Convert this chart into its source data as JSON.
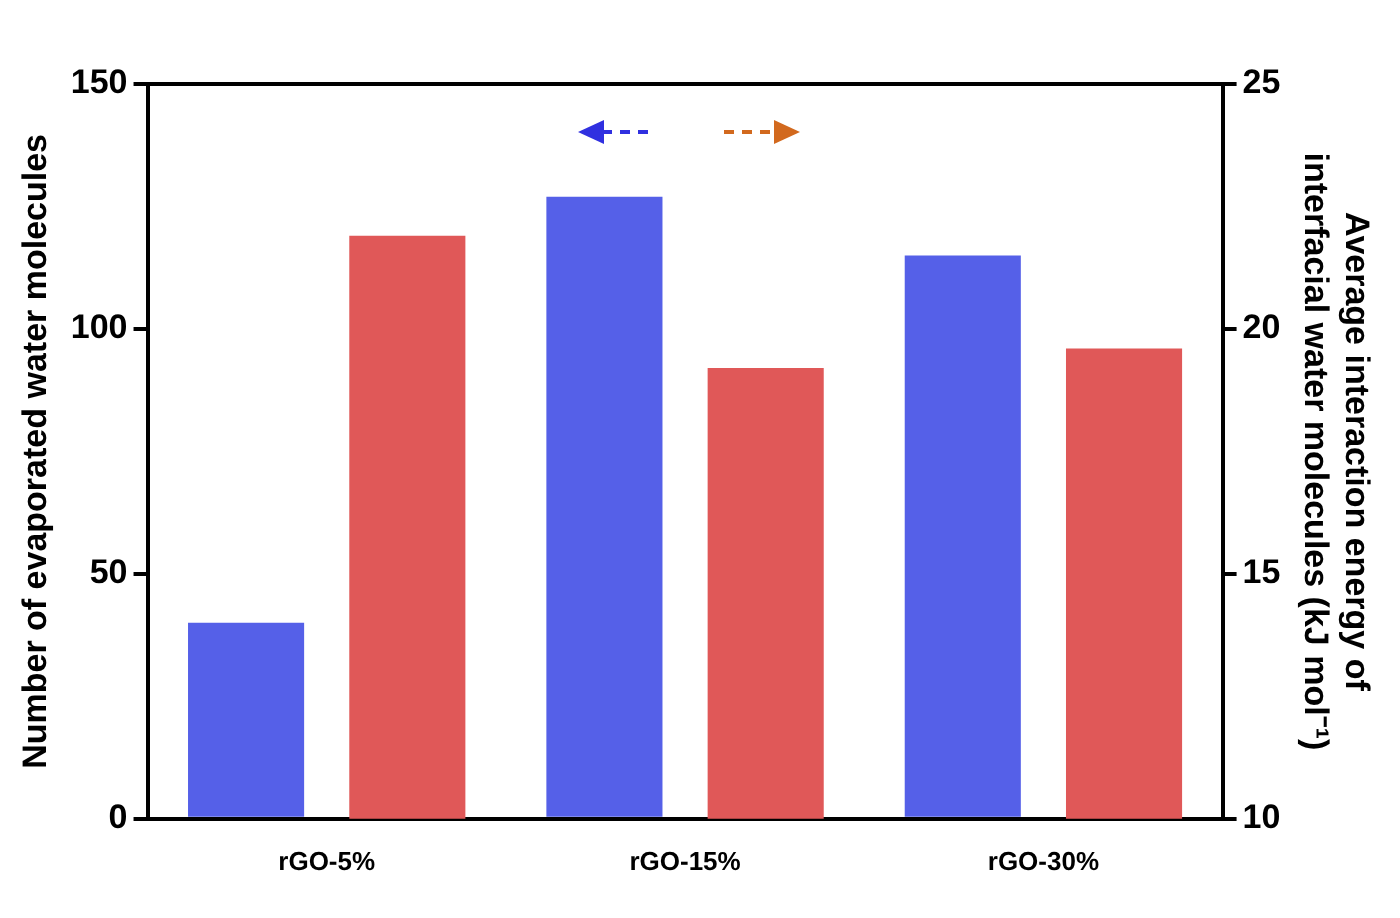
{
  "chart_data": {
    "type": "bar",
    "categories": [
      "rGO-5%",
      "rGO-15%",
      "rGO-30%"
    ],
    "ylabel": "Number of evaporated water molecules",
    "y2label": "Average interaction energy of interfacial water molecules (kJ mol⁻¹)",
    "series": [
      {
        "color": "#5560e8",
        "values": [
          40,
          127,
          115
        ]
      },
      {
        "color": "#e05858",
        "values": [
          21.9,
          19.2,
          19.6
        ],
        "axis": "y2"
      }
    ],
    "ylim": [
      0,
      150
    ],
    "yticks": [
      0,
      50,
      100,
      150
    ],
    "y2lim": [
      10,
      25
    ],
    "y2ticks": [
      10,
      15,
      20,
      25
    ],
    "grid": false,
    "legend": false
  }
}
